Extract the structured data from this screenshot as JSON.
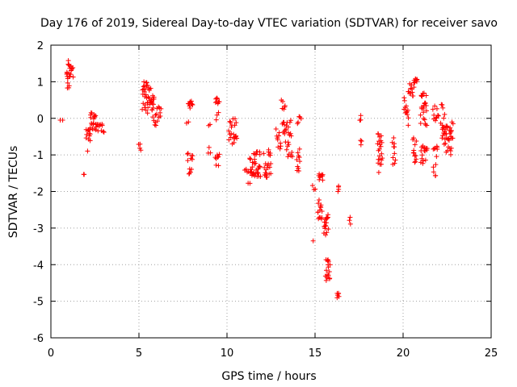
{
  "chart_data": {
    "type": "scatter",
    "title": "Day 176 of 2019, Sidereal Day-to-day VTEC variation (SDTVAR) for receiver savo",
    "xlabel": "GPS time / hours",
    "ylabel": "SDTVAR / TECUs",
    "xlim": [
      0,
      25
    ],
    "ylim": [
      -6,
      2
    ],
    "xticks": [
      0,
      5,
      10,
      15,
      20,
      25
    ],
    "yticks": [
      -6,
      -5,
      -4,
      -3,
      -2,
      -1,
      0,
      1,
      2
    ],
    "grid": true,
    "marker": "plus",
    "color": "#ff0000",
    "clusters": [
      {
        "x0": 0.55,
        "x1": 0.65,
        "y0": -0.05,
        "y1": -0.05,
        "n": 2
      },
      {
        "x0": 0.9,
        "x1": 1.05,
        "y0": 0.75,
        "y1": 1.7,
        "n": 14
      },
      {
        "x0": 1.05,
        "x1": 1.25,
        "y0": 1.1,
        "y1": 1.45,
        "n": 10
      },
      {
        "x0": 1.85,
        "x1": 1.9,
        "y0": -1.55,
        "y1": -1.5,
        "n": 2
      },
      {
        "x0": 2.0,
        "x1": 2.25,
        "y0": -1.0,
        "y1": -0.3,
        "n": 12
      },
      {
        "x0": 2.2,
        "x1": 2.55,
        "y0": -0.35,
        "y1": 0.2,
        "n": 18
      },
      {
        "x0": 2.5,
        "x1": 3.0,
        "y0": -0.4,
        "y1": -0.15,
        "n": 14
      },
      {
        "x0": 5.0,
        "x1": 5.1,
        "y0": -0.9,
        "y1": -0.7,
        "n": 4
      },
      {
        "x0": 5.2,
        "x1": 5.5,
        "y0": 0.1,
        "y1": 1.0,
        "n": 22
      },
      {
        "x0": 5.5,
        "x1": 5.85,
        "y0": 0.2,
        "y1": 0.85,
        "n": 22
      },
      {
        "x0": 5.8,
        "x1": 6.25,
        "y0": -0.2,
        "y1": 0.4,
        "n": 16
      },
      {
        "x0": 7.7,
        "x1": 7.8,
        "y0": -0.15,
        "y1": -0.1,
        "n": 2
      },
      {
        "x0": 7.75,
        "x1": 8.05,
        "y0": -1.55,
        "y1": -0.95,
        "n": 12
      },
      {
        "x0": 7.8,
        "x1": 8.05,
        "y0": 0.25,
        "y1": 0.55,
        "n": 10
      },
      {
        "x0": 8.95,
        "x1": 9.05,
        "y0": -0.95,
        "y1": -0.7,
        "n": 3
      },
      {
        "x0": 8.95,
        "x1": 9.05,
        "y0": -0.25,
        "y1": -0.15,
        "n": 2
      },
      {
        "x0": 9.35,
        "x1": 9.55,
        "y0": 0.4,
        "y1": 0.6,
        "n": 8
      },
      {
        "x0": 9.35,
        "x1": 9.55,
        "y0": -1.3,
        "y1": -0.8,
        "n": 8
      },
      {
        "x0": 9.4,
        "x1": 9.5,
        "y0": -0.1,
        "y1": 0.25,
        "n": 3
      },
      {
        "x0": 10.1,
        "x1": 10.5,
        "y0": -0.75,
        "y1": 0.0,
        "n": 18
      },
      {
        "x0": 10.4,
        "x1": 10.55,
        "y0": -0.6,
        "y1": -0.4,
        "n": 4
      },
      {
        "x0": 11.0,
        "x1": 11.3,
        "y0": -1.5,
        "y1": -1.35,
        "n": 5
      },
      {
        "x0": 11.2,
        "x1": 11.3,
        "y0": -1.8,
        "y1": -1.75,
        "n": 2
      },
      {
        "x0": 11.3,
        "x1": 11.9,
        "y0": -1.6,
        "y1": -0.9,
        "n": 36
      },
      {
        "x0": 12.1,
        "x1": 12.5,
        "y0": -1.65,
        "y1": -0.85,
        "n": 22
      },
      {
        "x0": 12.8,
        "x1": 13.05,
        "y0": -0.9,
        "y1": -0.2,
        "n": 10
      },
      {
        "x0": 13.1,
        "x1": 13.3,
        "y0": 0.25,
        "y1": 0.5,
        "n": 6
      },
      {
        "x0": 13.15,
        "x1": 13.4,
        "y0": -0.75,
        "y1": -0.1,
        "n": 12
      },
      {
        "x0": 13.4,
        "x1": 13.7,
        "y0": -1.05,
        "y1": -0.05,
        "n": 16
      },
      {
        "x0": 13.95,
        "x1": 14.15,
        "y0": -1.45,
        "y1": -0.7,
        "n": 10
      },
      {
        "x0": 14.0,
        "x1": 14.2,
        "y0": -0.25,
        "y1": 0.05,
        "n": 5
      },
      {
        "x0": 14.85,
        "x1": 14.9,
        "y0": -3.35,
        "y1": -3.35,
        "n": 1
      },
      {
        "x0": 14.85,
        "x1": 15.0,
        "y0": -1.95,
        "y1": -1.8,
        "n": 3
      },
      {
        "x0": 15.2,
        "x1": 15.45,
        "y0": -1.7,
        "y1": -1.5,
        "n": 10
      },
      {
        "x0": 15.15,
        "x1": 15.4,
        "y0": -2.8,
        "y1": -2.2,
        "n": 14
      },
      {
        "x0": 15.5,
        "x1": 15.75,
        "y0": -3.2,
        "y1": -2.6,
        "n": 16
      },
      {
        "x0": 15.6,
        "x1": 15.85,
        "y0": -4.5,
        "y1": -3.75,
        "n": 16
      },
      {
        "x0": 16.25,
        "x1": 16.35,
        "y0": -4.95,
        "y1": -4.65,
        "n": 6
      },
      {
        "x0": 16.3,
        "x1": 16.35,
        "y0": -2.1,
        "y1": -1.8,
        "n": 4
      },
      {
        "x0": 16.95,
        "x1": 17.0,
        "y0": -2.9,
        "y1": -2.6,
        "n": 3
      },
      {
        "x0": 17.55,
        "x1": 17.6,
        "y0": -0.2,
        "y1": 0.1,
        "n": 3
      },
      {
        "x0": 17.6,
        "x1": 17.65,
        "y0": -0.9,
        "y1": -0.55,
        "n": 3
      },
      {
        "x0": 18.55,
        "x1": 18.8,
        "y0": -1.5,
        "y1": -0.4,
        "n": 22
      },
      {
        "x0": 19.4,
        "x1": 19.55,
        "y0": -1.4,
        "y1": -0.5,
        "n": 10
      },
      {
        "x0": 20.05,
        "x1": 20.3,
        "y0": -0.25,
        "y1": 0.6,
        "n": 12
      },
      {
        "x0": 20.3,
        "x1": 20.6,
        "y0": 0.6,
        "y1": 0.95,
        "n": 12
      },
      {
        "x0": 20.6,
        "x1": 20.8,
        "y0": 0.95,
        "y1": 1.1,
        "n": 8
      },
      {
        "x0": 20.55,
        "x1": 20.75,
        "y0": -1.25,
        "y1": -0.5,
        "n": 12
      },
      {
        "x0": 21.0,
        "x1": 21.35,
        "y0": -0.2,
        "y1": 0.7,
        "n": 24
      },
      {
        "x0": 21.0,
        "x1": 21.35,
        "y0": -1.25,
        "y1": -0.7,
        "n": 16
      },
      {
        "x0": 21.7,
        "x1": 21.95,
        "y0": -1.7,
        "y1": -0.7,
        "n": 12
      },
      {
        "x0": 21.7,
        "x1": 22.0,
        "y0": -0.1,
        "y1": 0.35,
        "n": 10
      },
      {
        "x0": 22.15,
        "x1": 22.35,
        "y0": -0.3,
        "y1": 0.4,
        "n": 6
      },
      {
        "x0": 22.2,
        "x1": 22.75,
        "y0": -1.0,
        "y1": -0.1,
        "n": 34
      },
      {
        "x0": 22.7,
        "x1": 22.85,
        "y0": -0.6,
        "y1": 0.05,
        "n": 6
      }
    ]
  }
}
